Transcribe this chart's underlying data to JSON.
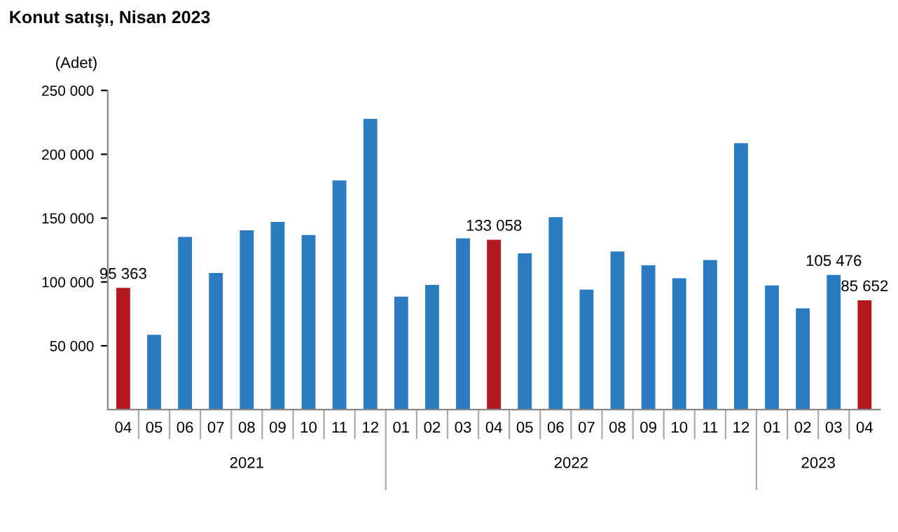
{
  "chart_data": {
    "type": "bar",
    "title": "Konut satışı, Nisan 2023",
    "ylabel": "(Adet)",
    "categories": [
      "04",
      "05",
      "06",
      "07",
      "08",
      "09",
      "10",
      "11",
      "12",
      "01",
      "02",
      "03",
      "04",
      "05",
      "06",
      "07",
      "08",
      "09",
      "10",
      "11",
      "12",
      "01",
      "02",
      "03",
      "04"
    ],
    "annotations": [
      "2021",
      "2022",
      "2023"
    ],
    "values": [
      95363,
      58600,
      135300,
      107000,
      140500,
      147100,
      136800,
      179500,
      227800,
      88500,
      97700,
      134200,
      133058,
      122400,
      150700,
      94000,
      123900,
      113100,
      102900,
      117200,
      208700,
      97300,
      79300,
      105476,
      85652
    ],
    "colors": [
      "#b3191e",
      "#2b7bc0",
      "#2b7bc0",
      "#2b7bc0",
      "#2b7bc0",
      "#2b7bc0",
      "#2b7bc0",
      "#2b7bc0",
      "#2b7bc0",
      "#2b7bc0",
      "#2b7bc0",
      "#2b7bc0",
      "#b3191e",
      "#2b7bc0",
      "#2b7bc0",
      "#2b7bc0",
      "#2b7bc0",
      "#2b7bc0",
      "#2b7bc0",
      "#2b7bc0",
      "#2b7bc0",
      "#2b7bc0",
      "#2b7bc0",
      "#2b7bc0",
      "#b3191e"
    ],
    "value_labels": [
      "95 363",
      null,
      null,
      null,
      null,
      null,
      null,
      null,
      null,
      null,
      null,
      null,
      "133 058",
      null,
      null,
      null,
      null,
      null,
      null,
      null,
      null,
      null,
      null,
      "105 476",
      "85 652"
    ],
    "ylim": [
      0,
      250000
    ],
    "yticks": [
      {
        "value": 50000,
        "label": "50 000"
      },
      {
        "value": 100000,
        "label": "100 000"
      },
      {
        "value": 150000,
        "label": "150 000"
      },
      {
        "value": 200000,
        "label": "200 000"
      },
      {
        "value": 250000,
        "label": "250 000"
      }
    ],
    "grid": false,
    "legend": false
  }
}
